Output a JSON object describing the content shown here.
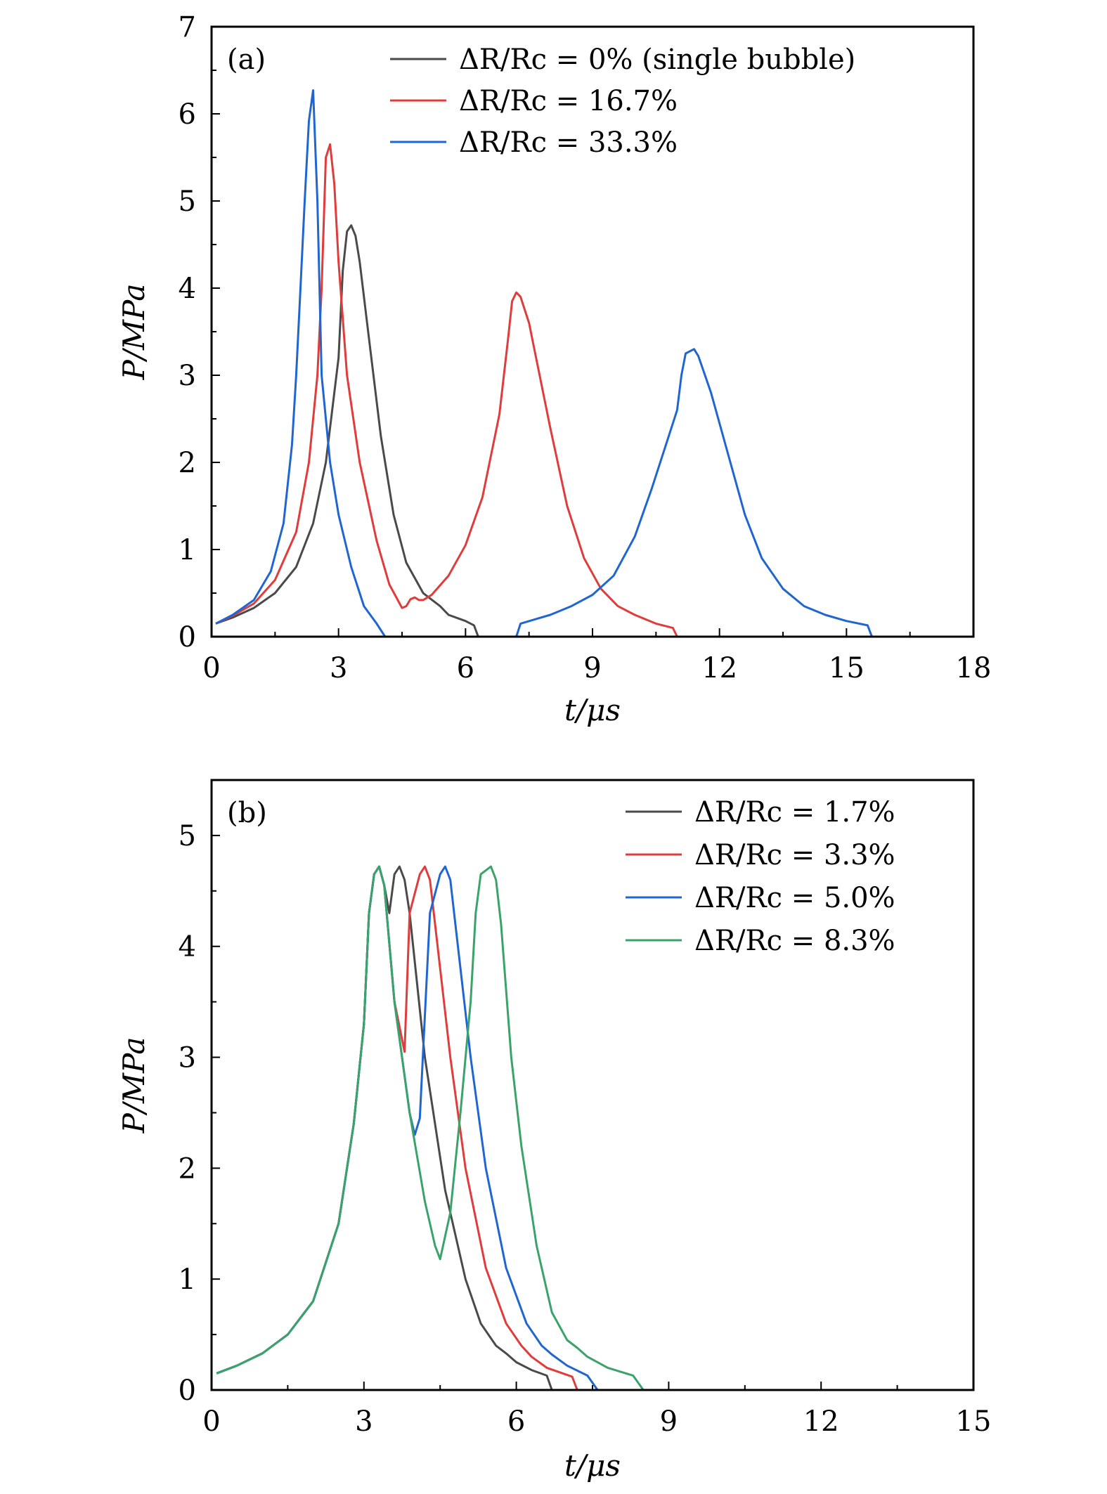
{
  "chart_data": [
    {
      "type": "line",
      "panel_label": "(a)",
      "xlabel": "t/μs",
      "ylabel": "P/MPa",
      "xlim": [
        0,
        18
      ],
      "ylim": [
        0,
        7
      ],
      "xticks": [
        0,
        3,
        6,
        9,
        12,
        15,
        18
      ],
      "yticks": [
        0,
        1,
        2,
        3,
        4,
        5,
        6,
        7
      ],
      "grid": false,
      "legend_position": "top-right",
      "series": [
        {
          "name": "ΔR/Rc = 0% (single bubble)",
          "color": "#4a4a4a",
          "points": [
            [
              0.1,
              0.15
            ],
            [
              0.5,
              0.22
            ],
            [
              1,
              0.33
            ],
            [
              1.5,
              0.5
            ],
            [
              2,
              0.8
            ],
            [
              2.4,
              1.3
            ],
            [
              2.7,
              2.0
            ],
            [
              3.0,
              3.2
            ],
            [
              3.1,
              4.2
            ],
            [
              3.2,
              4.65
            ],
            [
              3.3,
              4.72
            ],
            [
              3.4,
              4.6
            ],
            [
              3.5,
              4.3
            ],
            [
              3.7,
              3.5
            ],
            [
              4.0,
              2.3
            ],
            [
              4.3,
              1.4
            ],
            [
              4.6,
              0.85
            ],
            [
              5.0,
              0.5
            ],
            [
              5.4,
              0.35
            ],
            [
              5.6,
              0.25
            ],
            [
              6.0,
              0.18
            ],
            [
              6.2,
              0.13
            ],
            [
              6.3,
              0
            ],
            [
              18,
              0
            ]
          ]
        },
        {
          "name": "ΔR/Rc = 16.7%",
          "color": "#e03c3c",
          "points": [
            [
              0.1,
              0.15
            ],
            [
              0.5,
              0.24
            ],
            [
              1,
              0.38
            ],
            [
              1.5,
              0.65
            ],
            [
              2,
              1.2
            ],
            [
              2.3,
              2.0
            ],
            [
              2.5,
              3.0
            ],
            [
              2.6,
              4.0
            ],
            [
              2.7,
              5.5
            ],
            [
              2.8,
              5.65
            ],
            [
              2.9,
              5.2
            ],
            [
              3.0,
              4.3
            ],
            [
              3.2,
              3.0
            ],
            [
              3.5,
              2.0
            ],
            [
              3.9,
              1.1
            ],
            [
              4.2,
              0.6
            ],
            [
              4.5,
              0.33
            ],
            [
              4.6,
              0.35
            ],
            [
              4.7,
              0.43
            ],
            [
              4.8,
              0.45
            ],
            [
              4.9,
              0.42
            ],
            [
              5.0,
              0.42
            ],
            [
              5.2,
              0.48
            ],
            [
              5.6,
              0.7
            ],
            [
              6.0,
              1.05
            ],
            [
              6.4,
              1.6
            ],
            [
              6.8,
              2.55
            ],
            [
              7.0,
              3.4
            ],
            [
              7.1,
              3.85
            ],
            [
              7.2,
              3.95
            ],
            [
              7.3,
              3.9
            ],
            [
              7.5,
              3.6
            ],
            [
              8.0,
              2.4
            ],
            [
              8.4,
              1.5
            ],
            [
              8.8,
              0.9
            ],
            [
              9.2,
              0.55
            ],
            [
              9.6,
              0.35
            ],
            [
              10.0,
              0.25
            ],
            [
              10.5,
              0.15
            ],
            [
              10.9,
              0.1
            ],
            [
              11.0,
              0
            ],
            [
              18,
              0
            ]
          ]
        },
        {
          "name": "ΔR/Rc = 33.3%",
          "color": "#1f66d1",
          "points": [
            [
              0.1,
              0.15
            ],
            [
              0.5,
              0.25
            ],
            [
              1,
              0.42
            ],
            [
              1.4,
              0.75
            ],
            [
              1.7,
              1.3
            ],
            [
              1.9,
              2.2
            ],
            [
              2.0,
              3.0
            ],
            [
              2.1,
              4.0
            ],
            [
              2.2,
              5.0
            ],
            [
              2.3,
              5.92
            ],
            [
              2.4,
              6.27
            ],
            [
              2.5,
              5.0
            ],
            [
              2.6,
              3.0
            ],
            [
              2.8,
              2.0
            ],
            [
              3.0,
              1.4
            ],
            [
              3.3,
              0.8
            ],
            [
              3.6,
              0.35
            ],
            [
              3.9,
              0.15
            ],
            [
              4.1,
              0
            ],
            [
              7.2,
              0
            ],
            [
              7.3,
              0.15
            ],
            [
              8.0,
              0.25
            ],
            [
              8.5,
              0.35
            ],
            [
              9.0,
              0.48
            ],
            [
              9.5,
              0.7
            ],
            [
              10.0,
              1.15
            ],
            [
              10.4,
              1.7
            ],
            [
              10.8,
              2.3
            ],
            [
              11.0,
              2.6
            ],
            [
              11.1,
              3.0
            ],
            [
              11.2,
              3.25
            ],
            [
              11.4,
              3.3
            ],
            [
              11.5,
              3.22
            ],
            [
              11.8,
              2.8
            ],
            [
              12.2,
              2.1
            ],
            [
              12.6,
              1.4
            ],
            [
              13.0,
              0.9
            ],
            [
              13.5,
              0.55
            ],
            [
              14.0,
              0.35
            ],
            [
              14.5,
              0.25
            ],
            [
              15.0,
              0.18
            ],
            [
              15.5,
              0.13
            ],
            [
              15.6,
              0
            ],
            [
              18,
              0
            ]
          ]
        }
      ]
    },
    {
      "type": "line",
      "panel_label": "(b)",
      "xlabel": "t/μs",
      "ylabel": "P/MPa",
      "xlim": [
        0,
        15
      ],
      "ylim": [
        0,
        5.5
      ],
      "xticks": [
        0,
        3,
        6,
        9,
        12,
        15
      ],
      "yticks": [
        0,
        1,
        2,
        3,
        4,
        5
      ],
      "grid": false,
      "legend_position": "top-right",
      "series": [
        {
          "name": "ΔR/Rc = 1.7%",
          "color": "#4a4a4a",
          "points": [
            [
              0.1,
              0.15
            ],
            [
              0.5,
              0.22
            ],
            [
              1,
              0.33
            ],
            [
              1.5,
              0.5
            ],
            [
              2,
              0.8
            ],
            [
              2.5,
              1.5
            ],
            [
              2.8,
              2.4
            ],
            [
              3.0,
              3.3
            ],
            [
              3.1,
              4.3
            ],
            [
              3.2,
              4.65
            ],
            [
              3.3,
              4.72
            ],
            [
              3.4,
              4.55
            ],
            [
              3.5,
              4.3
            ],
            [
              3.6,
              4.65
            ],
            [
              3.7,
              4.72
            ],
            [
              3.8,
              4.6
            ],
            [
              3.9,
              4.3
            ],
            [
              4.2,
              3.0
            ],
            [
              4.6,
              1.8
            ],
            [
              5.0,
              1.0
            ],
            [
              5.3,
              0.6
            ],
            [
              5.6,
              0.4
            ],
            [
              5.8,
              0.33
            ],
            [
              6.0,
              0.25
            ],
            [
              6.3,
              0.18
            ],
            [
              6.6,
              0.13
            ],
            [
              6.7,
              0
            ],
            [
              15,
              0
            ]
          ]
        },
        {
          "name": "ΔR/Rc = 3.3%",
          "color": "#e03c3c",
          "points": [
            [
              0.1,
              0.15
            ],
            [
              0.5,
              0.22
            ],
            [
              1,
              0.33
            ],
            [
              1.5,
              0.5
            ],
            [
              2,
              0.8
            ],
            [
              2.5,
              1.5
            ],
            [
              2.8,
              2.4
            ],
            [
              3.0,
              3.3
            ],
            [
              3.1,
              4.3
            ],
            [
              3.2,
              4.65
            ],
            [
              3.3,
              4.72
            ],
            [
              3.4,
              4.55
            ],
            [
              3.6,
              3.5
            ],
            [
              3.8,
              3.05
            ],
            [
              3.9,
              4.3
            ],
            [
              4.1,
              4.65
            ],
            [
              4.2,
              4.72
            ],
            [
              4.3,
              4.6
            ],
            [
              4.4,
              4.2
            ],
            [
              4.7,
              3.0
            ],
            [
              5.0,
              2.0
            ],
            [
              5.4,
              1.1
            ],
            [
              5.8,
              0.6
            ],
            [
              6.1,
              0.4
            ],
            [
              6.3,
              0.3
            ],
            [
              6.6,
              0.2
            ],
            [
              7.1,
              0.12
            ],
            [
              7.2,
              0
            ],
            [
              15,
              0
            ]
          ]
        },
        {
          "name": "ΔR/Rc = 5.0%",
          "color": "#1f66d1",
          "points": [
            [
              0.1,
              0.15
            ],
            [
              0.5,
              0.22
            ],
            [
              1,
              0.33
            ],
            [
              1.5,
              0.5
            ],
            [
              2,
              0.8
            ],
            [
              2.5,
              1.5
            ],
            [
              2.8,
              2.4
            ],
            [
              3.0,
              3.3
            ],
            [
              3.1,
              4.3
            ],
            [
              3.2,
              4.65
            ],
            [
              3.3,
              4.72
            ],
            [
              3.4,
              4.55
            ],
            [
              3.6,
              3.5
            ],
            [
              3.9,
              2.5
            ],
            [
              4.0,
              2.3
            ],
            [
              4.1,
              2.45
            ],
            [
              4.3,
              4.3
            ],
            [
              4.5,
              4.65
            ],
            [
              4.6,
              4.72
            ],
            [
              4.7,
              4.6
            ],
            [
              4.8,
              4.2
            ],
            [
              5.1,
              3.0
            ],
            [
              5.4,
              2.0
            ],
            [
              5.8,
              1.1
            ],
            [
              6.2,
              0.6
            ],
            [
              6.5,
              0.4
            ],
            [
              6.7,
              0.32
            ],
            [
              7.0,
              0.22
            ],
            [
              7.4,
              0.13
            ],
            [
              7.6,
              0
            ],
            [
              15,
              0
            ]
          ]
        },
        {
          "name": "ΔR/Rc = 8.3%",
          "color": "#3aa36a",
          "points": [
            [
              0.1,
              0.15
            ],
            [
              0.5,
              0.22
            ],
            [
              1,
              0.33
            ],
            [
              1.5,
              0.5
            ],
            [
              2,
              0.8
            ],
            [
              2.5,
              1.5
            ],
            [
              2.8,
              2.4
            ],
            [
              3.0,
              3.3
            ],
            [
              3.1,
              4.3
            ],
            [
              3.2,
              4.65
            ],
            [
              3.3,
              4.72
            ],
            [
              3.4,
              4.55
            ],
            [
              3.6,
              3.5
            ],
            [
              3.9,
              2.5
            ],
            [
              4.2,
              1.7
            ],
            [
              4.4,
              1.3
            ],
            [
              4.5,
              1.18
            ],
            [
              4.7,
              1.6
            ],
            [
              4.9,
              2.5
            ],
            [
              5.1,
              3.5
            ],
            [
              5.2,
              4.3
            ],
            [
              5.3,
              4.65
            ],
            [
              5.5,
              4.72
            ],
            [
              5.6,
              4.6
            ],
            [
              5.7,
              4.2
            ],
            [
              5.9,
              3.0
            ],
            [
              6.1,
              2.2
            ],
            [
              6.4,
              1.3
            ],
            [
              6.7,
              0.7
            ],
            [
              7.0,
              0.45
            ],
            [
              7.2,
              0.38
            ],
            [
              7.4,
              0.3
            ],
            [
              7.8,
              0.2
            ],
            [
              8.3,
              0.13
            ],
            [
              8.5,
              0
            ],
            [
              15,
              0
            ]
          ]
        }
      ]
    }
  ]
}
